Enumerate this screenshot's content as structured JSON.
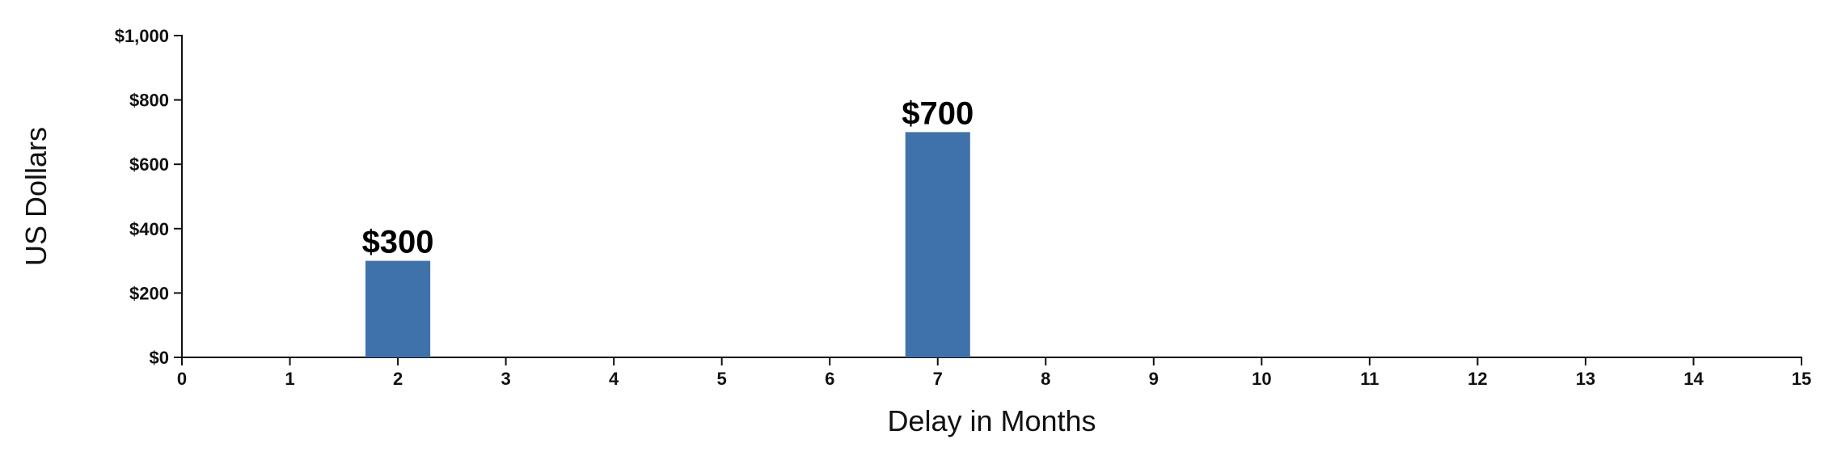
{
  "chart_data": {
    "type": "bar",
    "x": [
      2,
      7
    ],
    "values": [
      300,
      700
    ],
    "data_labels": [
      "$300",
      "$700"
    ],
    "xlabel": "Delay in Months",
    "ylabel": "US Dollars",
    "xlim": [
      0,
      15
    ],
    "ylim": [
      0,
      1000
    ],
    "x_ticks": [
      0,
      1,
      2,
      3,
      4,
      5,
      6,
      7,
      8,
      9,
      10,
      11,
      12,
      13,
      14,
      15
    ],
    "x_tick_labels": [
      "0",
      "1",
      "2",
      "3",
      "4",
      "5",
      "6",
      "7",
      "8",
      "9",
      "10",
      "11",
      "12",
      "13",
      "14",
      "15"
    ],
    "y_ticks": [
      0,
      200,
      400,
      600,
      800,
      1000
    ],
    "y_tick_labels": [
      "$0",
      "$200",
      "$400",
      "$600",
      "$800",
      "$1,000"
    ],
    "bar_width_units": 0.6,
    "grid": false,
    "legend": "none",
    "colors": {
      "bar": "#3f72ab",
      "axis": "#111111",
      "text": "#111111"
    }
  }
}
